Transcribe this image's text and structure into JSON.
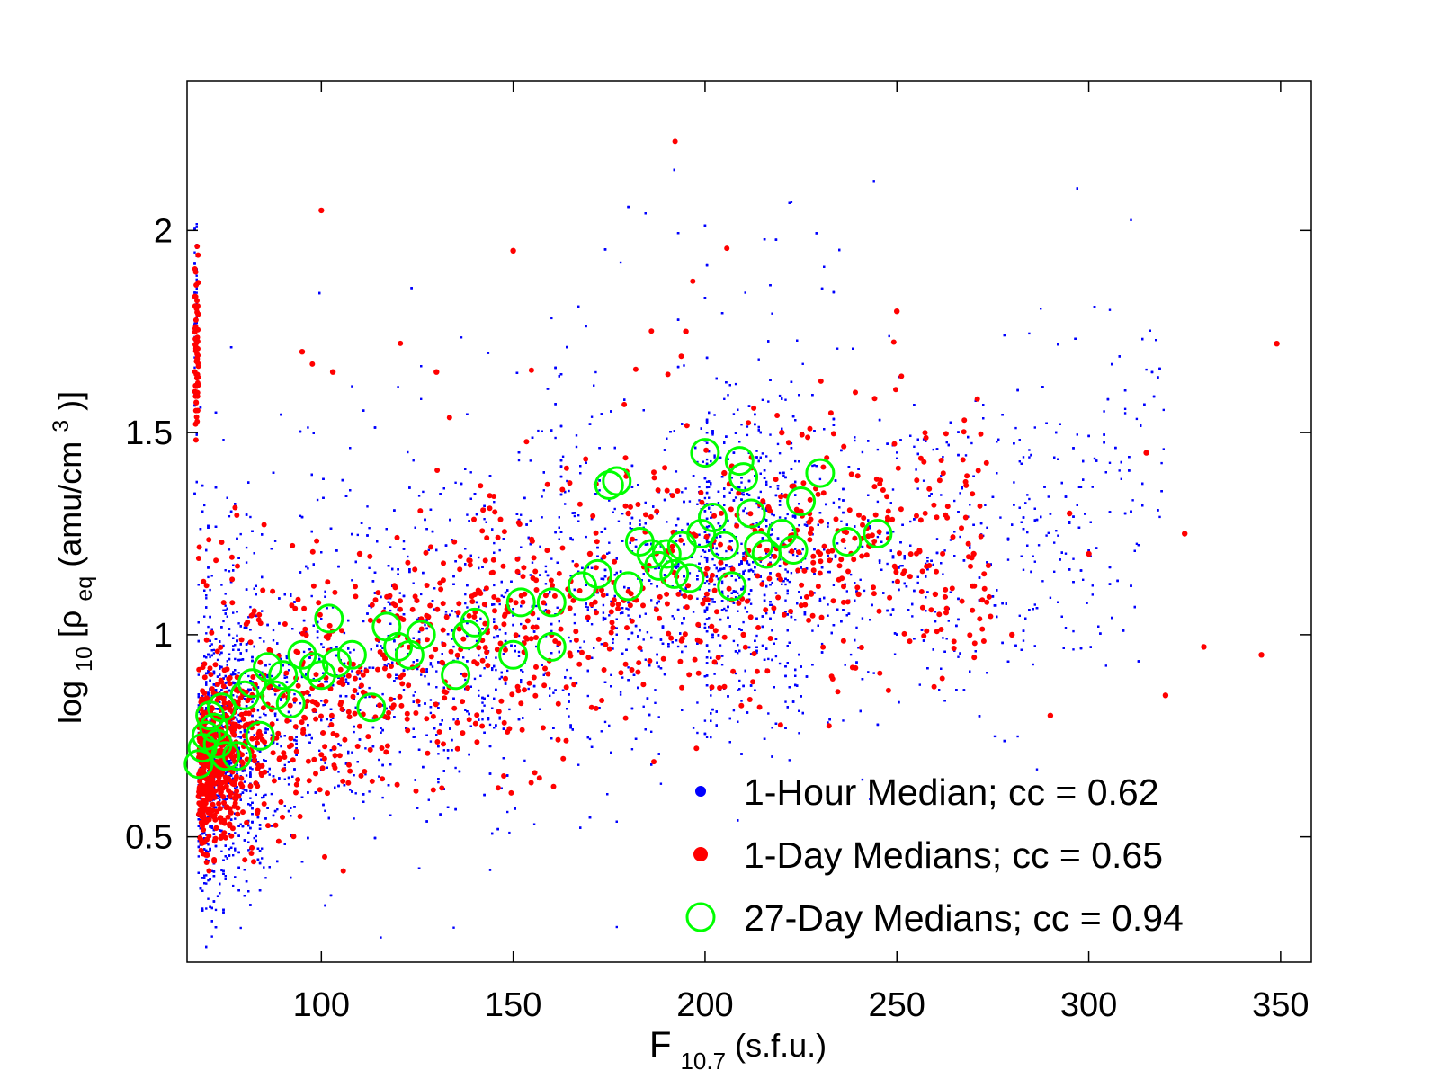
{
  "chart_data": {
    "type": "scatter",
    "title": "",
    "xlabel": {
      "main": "F",
      "sub": "10.7",
      "unit": " (s.f.u.)"
    },
    "ylabel": {
      "pre": "log",
      "pre_sub": "10",
      "mid": "[ρ",
      "mid_sub": "eq",
      "post": " (amu/cm",
      "post_sup": "3",
      "end": ")]"
    },
    "xlim": [
      65,
      358
    ],
    "ylim": [
      0.19,
      2.37
    ],
    "xticks": [
      100,
      150,
      200,
      250,
      300,
      350
    ],
    "yticks": [
      0.5,
      1,
      1.5,
      2
    ],
    "xtick_labels": [
      "100",
      "150",
      "200",
      "250",
      "300",
      "350"
    ],
    "ytick_labels": [
      "0.5",
      "1",
      "1.5",
      "2"
    ],
    "grid": false,
    "legend_position": "bottom-right",
    "series": [
      {
        "name": "1-Hour Median; cc = 0.62",
        "color": "#0000ff",
        "marker": "dot",
        "approx_trend": [
          [
            68,
            0.65
          ],
          [
            100,
            0.85
          ],
          [
            150,
            1.0
          ],
          [
            200,
            1.15
          ],
          [
            250,
            1.2
          ],
          [
            300,
            1.25
          ],
          [
            350,
            1.7
          ]
        ],
        "note_values": "dense cloud of ~20000 points; representative samples"
      },
      {
        "name": "1-Day Medians; cc = 0.65",
        "color": "#ff0000",
        "marker": "filled-circle",
        "points": [
          [
            68,
            0.6
          ],
          [
            70,
            0.7
          ],
          [
            72,
            0.55
          ],
          [
            75,
            0.8
          ],
          [
            80,
            0.75
          ],
          [
            85,
            0.9
          ],
          [
            90,
            0.85
          ],
          [
            95,
            1.7
          ],
          [
            100,
            2.05
          ],
          [
            103,
            1.65
          ],
          [
            110,
            1.2
          ],
          [
            120,
            1.0
          ],
          [
            130,
            1.65
          ],
          [
            140,
            1.1
          ],
          [
            150,
            1.95
          ],
          [
            160,
            1.0
          ],
          [
            170,
            1.2
          ],
          [
            180,
            1.3
          ],
          [
            190,
            1.2
          ],
          [
            195,
            1.75
          ],
          [
            200,
            1.15
          ],
          [
            205,
            1.4
          ],
          [
            210,
            1.0
          ],
          [
            220,
            1.5
          ],
          [
            230,
            1.2
          ],
          [
            240,
            1.1
          ],
          [
            250,
            1.8
          ],
          [
            260,
            1.1
          ],
          [
            270,
            1.2
          ],
          [
            280,
            1.0
          ],
          [
            290,
            0.8
          ],
          [
            295,
            1.3
          ],
          [
            300,
            1.2
          ],
          [
            315,
            1.45
          ],
          [
            320,
            0.85
          ],
          [
            325,
            1.25
          ],
          [
            330,
            0.97
          ],
          [
            345,
            0.95
          ],
          [
            349,
            1.72
          ]
        ]
      },
      {
        "name": "27-Day Medians; cc = 0.94",
        "color": "#00ff00",
        "marker": "open-circle",
        "points": [
          [
            68,
            0.68
          ],
          [
            69,
            0.72
          ],
          [
            70,
            0.75
          ],
          [
            71,
            0.8
          ],
          [
            72,
            0.77
          ],
          [
            73,
            0.73
          ],
          [
            74,
            0.82
          ],
          [
            75,
            0.7
          ],
          [
            78,
            0.7
          ],
          [
            80,
            0.85
          ],
          [
            82,
            0.88
          ],
          [
            84,
            0.75
          ],
          [
            86,
            0.92
          ],
          [
            88,
            0.85
          ],
          [
            90,
            0.9
          ],
          [
            92,
            0.83
          ],
          [
            95,
            0.95
          ],
          [
            98,
            0.92
          ],
          [
            100,
            0.9
          ],
          [
            102,
            1.04
          ],
          [
            104,
            0.93
          ],
          [
            108,
            0.95
          ],
          [
            113,
            0.82
          ],
          [
            117,
            1.02
          ],
          [
            120,
            0.97
          ],
          [
            123,
            0.95
          ],
          [
            126,
            1.0
          ],
          [
            135,
            0.9
          ],
          [
            138,
            1.0
          ],
          [
            140,
            1.03
          ],
          [
            150,
            0.95
          ],
          [
            152,
            1.08
          ],
          [
            160,
            0.97
          ],
          [
            160,
            1.08
          ],
          [
            168,
            1.12
          ],
          [
            172,
            1.15
          ],
          [
            175,
            1.37
          ],
          [
            177,
            1.38
          ],
          [
            180,
            1.12
          ],
          [
            183,
            1.23
          ],
          [
            186,
            1.2
          ],
          [
            188,
            1.17
          ],
          [
            190,
            1.2
          ],
          [
            192,
            1.15
          ],
          [
            194,
            1.22
          ],
          [
            196,
            1.14
          ],
          [
            199,
            1.25
          ],
          [
            200,
            1.45
          ],
          [
            202,
            1.29
          ],
          [
            205,
            1.22
          ],
          [
            207,
            1.12
          ],
          [
            209,
            1.43
          ],
          [
            210,
            1.39
          ],
          [
            212,
            1.3
          ],
          [
            214,
            1.22
          ],
          [
            216,
            1.2
          ],
          [
            220,
            1.25
          ],
          [
            223,
            1.21
          ],
          [
            225,
            1.33
          ],
          [
            230,
            1.4
          ],
          [
            237,
            1.23
          ],
          [
            245,
            1.25
          ]
        ]
      }
    ]
  }
}
